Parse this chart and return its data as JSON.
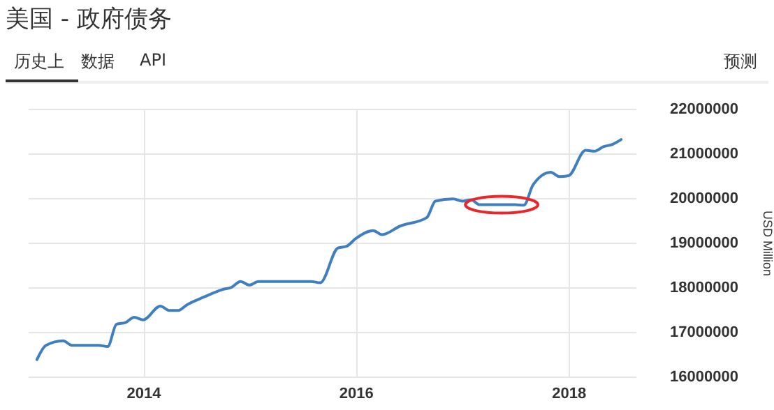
{
  "chart_data": {
    "type": "line",
    "title": "美国 - 政府债务",
    "ylabel": "USD Million",
    "annotations": [
      "历史上",
      "数据",
      "API",
      "预测"
    ],
    "x": [
      "2013-01",
      "2013-02",
      "2013-04",
      "2013-05",
      "2013-08",
      "2013-09",
      "2013-10",
      "2013-11",
      "2013-12",
      "2014-01",
      "2014-03",
      "2014-04",
      "2014-05",
      "2014-06",
      "2014-08",
      "2014-10",
      "2014-11",
      "2014-12",
      "2015-01",
      "2015-02",
      "2015-08",
      "2015-09",
      "2015-11",
      "2015-12",
      "2016-01",
      "2016-03",
      "2016-04",
      "2016-06",
      "2016-09",
      "2016-10",
      "2016-12",
      "2017-01",
      "2017-02",
      "2017-03",
      "2017-07",
      "2017-08",
      "2017-09",
      "2017-11",
      "2017-12",
      "2018-01",
      "2018-03",
      "2018-04",
      "2018-05",
      "2018-06",
      "2018-07"
    ],
    "series": [
      {
        "color": "#3f7fbf",
        "values": [
          16380000,
          16700000,
          16800000,
          16700000,
          16700000,
          16670000,
          17170000,
          17210000,
          17330000,
          17270000,
          17580000,
          17480000,
          17480000,
          17610000,
          17790000,
          17950000,
          18000000,
          18130000,
          18050000,
          18130000,
          18130000,
          18100000,
          18880000,
          18920000,
          19090000,
          19270000,
          19180000,
          19370000,
          19560000,
          19930000,
          19980000,
          19930000,
          19960000,
          19850000,
          19850000,
          19840000,
          20290000,
          20580000,
          20480000,
          20500000,
          21070000,
          21050000,
          21150000,
          21200000,
          21310000
        ]
      }
    ],
    "xlim": [
      "2012-12-01",
      "2018-08-20"
    ],
    "xticks": [
      "2014",
      "2016",
      "2018"
    ],
    "ylim": [
      16000000,
      22000000
    ],
    "yticks": [
      16000000,
      17000000,
      18000000,
      19000000,
      20000000,
      21000000,
      22000000
    ],
    "grid": true,
    "line_style": "solid",
    "marker": "none"
  }
}
